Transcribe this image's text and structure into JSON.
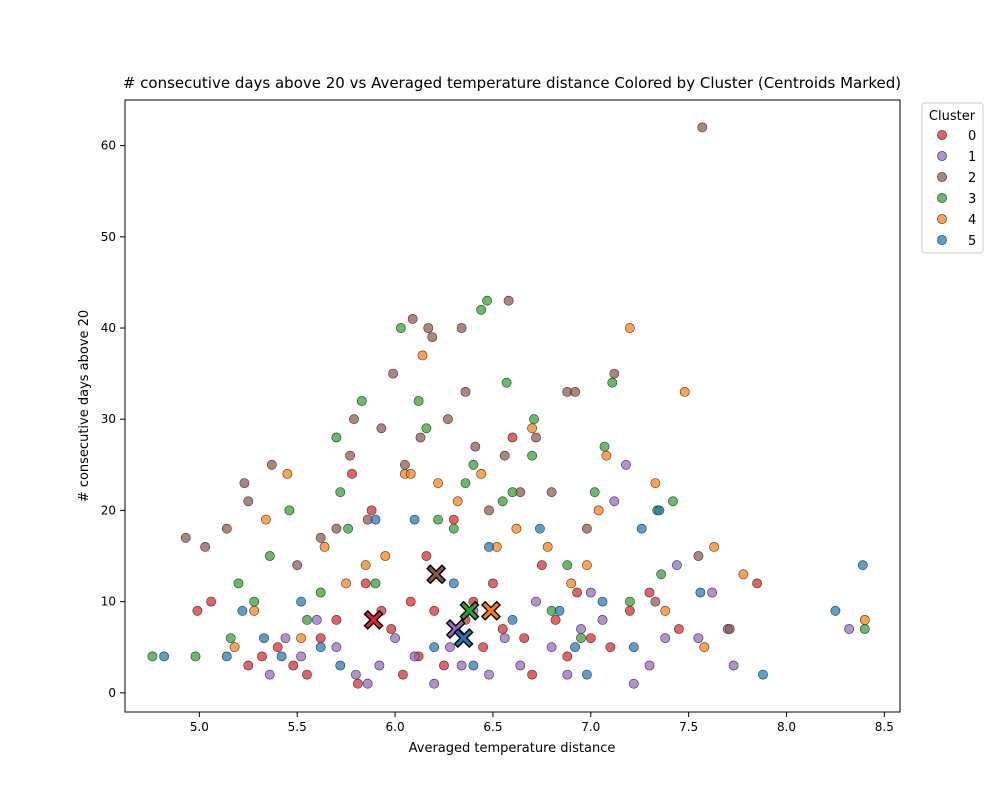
{
  "chart_data": {
    "type": "scatter",
    "title": "# consecutive days above 20 vs Averaged temperature distance Colored by Cluster (Centroids Marked)",
    "xlabel": "Averaged temperature distance",
    "ylabel": "# consecutive days above 20",
    "xlim": [
      4.62,
      8.58
    ],
    "ylim": [
      -2.1,
      65.0
    ],
    "xticks": [
      "5.0",
      "5.5",
      "6.0",
      "6.5",
      "7.0",
      "7.5",
      "8.0",
      "8.5"
    ],
    "yticks": [
      "0",
      "10",
      "20",
      "30",
      "40",
      "50",
      "60"
    ],
    "grid": false,
    "legend": {
      "title": "Cluster",
      "position": "top-right, outside plot"
    },
    "series": [
      {
        "name": "0",
        "color": "#d62728",
        "points": [
          [
            4.99,
            9
          ],
          [
            5.06,
            10
          ],
          [
            5.25,
            3
          ],
          [
            5.32,
            4
          ],
          [
            5.4,
            5
          ],
          [
            5.48,
            3
          ],
          [
            5.55,
            2
          ],
          [
            5.62,
            6
          ],
          [
            5.7,
            8
          ],
          [
            5.78,
            24
          ],
          [
            5.81,
            1
          ],
          [
            5.85,
            12
          ],
          [
            5.88,
            20
          ],
          [
            5.93,
            9
          ],
          [
            5.98,
            7
          ],
          [
            6.04,
            2
          ],
          [
            6.08,
            10
          ],
          [
            6.12,
            4
          ],
          [
            6.16,
            15
          ],
          [
            6.2,
            9
          ],
          [
            6.25,
            3
          ],
          [
            6.3,
            19
          ],
          [
            6.36,
            8
          ],
          [
            6.4,
            10
          ],
          [
            6.45,
            5
          ],
          [
            6.5,
            12
          ],
          [
            6.55,
            7
          ],
          [
            6.6,
            28
          ],
          [
            6.66,
            6
          ],
          [
            6.7,
            2
          ],
          [
            6.75,
            14
          ],
          [
            6.82,
            8
          ],
          [
            6.88,
            4
          ],
          [
            6.93,
            11
          ],
          [
            7.0,
            6
          ],
          [
            7.1,
            5
          ],
          [
            7.2,
            9
          ],
          [
            7.3,
            11
          ],
          [
            7.45,
            7
          ],
          [
            7.85,
            12
          ]
        ]
      },
      {
        "name": "1",
        "color": "#9467bd",
        "points": [
          [
            5.36,
            2
          ],
          [
            5.44,
            6
          ],
          [
            5.52,
            4
          ],
          [
            5.6,
            8
          ],
          [
            5.7,
            5
          ],
          [
            5.8,
            2
          ],
          [
            5.86,
            1
          ],
          [
            5.92,
            3
          ],
          [
            6.0,
            6
          ],
          [
            6.1,
            4
          ],
          [
            6.2,
            1
          ],
          [
            6.28,
            5
          ],
          [
            6.34,
            3
          ],
          [
            6.4,
            9
          ],
          [
            6.48,
            2
          ],
          [
            6.56,
            6
          ],
          [
            6.64,
            3
          ],
          [
            6.72,
            10
          ],
          [
            6.8,
            5
          ],
          [
            6.88,
            2
          ],
          [
            6.95,
            7
          ],
          [
            7.0,
            11
          ],
          [
            7.06,
            8
          ],
          [
            7.12,
            21
          ],
          [
            7.18,
            25
          ],
          [
            7.22,
            1
          ],
          [
            7.3,
            3
          ],
          [
            7.38,
            6
          ],
          [
            7.44,
            14
          ],
          [
            7.55,
            6
          ],
          [
            7.62,
            11
          ],
          [
            7.7,
            7
          ],
          [
            7.73,
            3
          ],
          [
            8.32,
            7
          ]
        ]
      },
      {
        "name": "2",
        "color": "#8c564b",
        "points": [
          [
            4.93,
            17
          ],
          [
            5.03,
            16
          ],
          [
            5.14,
            18
          ],
          [
            5.23,
            23
          ],
          [
            5.25,
            21
          ],
          [
            5.37,
            25
          ],
          [
            5.5,
            14
          ],
          [
            5.62,
            17
          ],
          [
            5.7,
            18
          ],
          [
            5.77,
            26
          ],
          [
            5.79,
            30
          ],
          [
            5.86,
            19
          ],
          [
            5.93,
            29
          ],
          [
            5.99,
            35
          ],
          [
            6.05,
            25
          ],
          [
            6.09,
            41
          ],
          [
            6.13,
            28
          ],
          [
            6.17,
            40
          ],
          [
            6.19,
            39
          ],
          [
            6.27,
            30
          ],
          [
            6.34,
            40
          ],
          [
            6.36,
            33
          ],
          [
            6.41,
            27
          ],
          [
            6.48,
            20
          ],
          [
            6.56,
            26
          ],
          [
            6.58,
            43
          ],
          [
            6.64,
            22
          ],
          [
            6.72,
            28
          ],
          [
            6.8,
            22
          ],
          [
            6.88,
            33
          ],
          [
            6.92,
            33
          ],
          [
            6.98,
            18
          ],
          [
            7.12,
            35
          ],
          [
            7.33,
            10
          ],
          [
            7.55,
            15
          ],
          [
            7.71,
            7
          ],
          [
            7.57,
            62
          ]
        ]
      },
      {
        "name": "3",
        "color": "#2ca02c",
        "points": [
          [
            4.76,
            4
          ],
          [
            4.98,
            4
          ],
          [
            5.16,
            6
          ],
          [
            5.2,
            12
          ],
          [
            5.28,
            10
          ],
          [
            5.36,
            15
          ],
          [
            5.46,
            20
          ],
          [
            5.55,
            8
          ],
          [
            5.62,
            11
          ],
          [
            5.7,
            28
          ],
          [
            5.72,
            22
          ],
          [
            5.76,
            18
          ],
          [
            5.83,
            32
          ],
          [
            5.9,
            12
          ],
          [
            6.03,
            40
          ],
          [
            6.12,
            32
          ],
          [
            6.16,
            29
          ],
          [
            6.22,
            19
          ],
          [
            6.3,
            18
          ],
          [
            6.36,
            23
          ],
          [
            6.4,
            25
          ],
          [
            6.44,
            42
          ],
          [
            6.47,
            43
          ],
          [
            6.55,
            21
          ],
          [
            6.57,
            34
          ],
          [
            6.6,
            22
          ],
          [
            6.7,
            26
          ],
          [
            6.71,
            30
          ],
          [
            6.8,
            9
          ],
          [
            6.88,
            14
          ],
          [
            6.95,
            6
          ],
          [
            7.02,
            22
          ],
          [
            7.07,
            27
          ],
          [
            7.11,
            34
          ],
          [
            7.2,
            10
          ],
          [
            7.34,
            20
          ],
          [
            7.36,
            13
          ],
          [
            7.42,
            21
          ],
          [
            8.4,
            7
          ]
        ]
      },
      {
        "name": "4",
        "color": "#ff7f0e",
        "points": [
          [
            5.18,
            5
          ],
          [
            5.28,
            9
          ],
          [
            5.34,
            19
          ],
          [
            5.45,
            24
          ],
          [
            5.52,
            6
          ],
          [
            5.64,
            16
          ],
          [
            5.75,
            12
          ],
          [
            5.85,
            14
          ],
          [
            5.95,
            15
          ],
          [
            6.05,
            24
          ],
          [
            6.08,
            24
          ],
          [
            6.14,
            37
          ],
          [
            6.22,
            23
          ],
          [
            6.32,
            21
          ],
          [
            6.44,
            24
          ],
          [
            6.52,
            16
          ],
          [
            6.62,
            18
          ],
          [
            6.7,
            29
          ],
          [
            6.78,
            16
          ],
          [
            6.9,
            12
          ],
          [
            6.98,
            14
          ],
          [
            7.04,
            20
          ],
          [
            7.08,
            26
          ],
          [
            7.2,
            40
          ],
          [
            7.33,
            23
          ],
          [
            7.38,
            9
          ],
          [
            7.48,
            33
          ],
          [
            7.58,
            5
          ],
          [
            7.63,
            16
          ],
          [
            7.78,
            13
          ],
          [
            8.4,
            8
          ]
        ]
      },
      {
        "name": "5",
        "color": "#1f77b4",
        "points": [
          [
            4.82,
            4
          ],
          [
            5.14,
            4
          ],
          [
            5.22,
            9
          ],
          [
            5.33,
            6
          ],
          [
            5.42,
            4
          ],
          [
            5.52,
            10
          ],
          [
            5.62,
            5
          ],
          [
            5.72,
            3
          ],
          [
            5.9,
            19
          ],
          [
            6.1,
            19
          ],
          [
            6.2,
            5
          ],
          [
            6.3,
            12
          ],
          [
            6.4,
            3
          ],
          [
            6.48,
            16
          ],
          [
            6.6,
            8
          ],
          [
            6.74,
            18
          ],
          [
            6.84,
            9
          ],
          [
            6.92,
            5
          ],
          [
            6.98,
            2
          ],
          [
            7.06,
            10
          ],
          [
            7.22,
            5
          ],
          [
            7.26,
            18
          ],
          [
            7.35,
            20
          ],
          [
            7.56,
            11
          ],
          [
            7.88,
            2
          ],
          [
            8.25,
            9
          ],
          [
            8.39,
            14
          ]
        ]
      }
    ],
    "centroids": [
      {
        "cluster": "0",
        "x": 5.89,
        "y": 8,
        "color": "#d62728"
      },
      {
        "cluster": "1",
        "x": 6.31,
        "y": 7,
        "color": "#9467bd"
      },
      {
        "cluster": "2",
        "x": 6.21,
        "y": 13,
        "color": "#8c564b"
      },
      {
        "cluster": "3",
        "x": 6.38,
        "y": 9,
        "color": "#2ca02c"
      },
      {
        "cluster": "4",
        "x": 6.49,
        "y": 9,
        "color": "#ff7f0e"
      },
      {
        "cluster": "5",
        "x": 6.35,
        "y": 6,
        "color": "#1f77b4"
      }
    ]
  }
}
